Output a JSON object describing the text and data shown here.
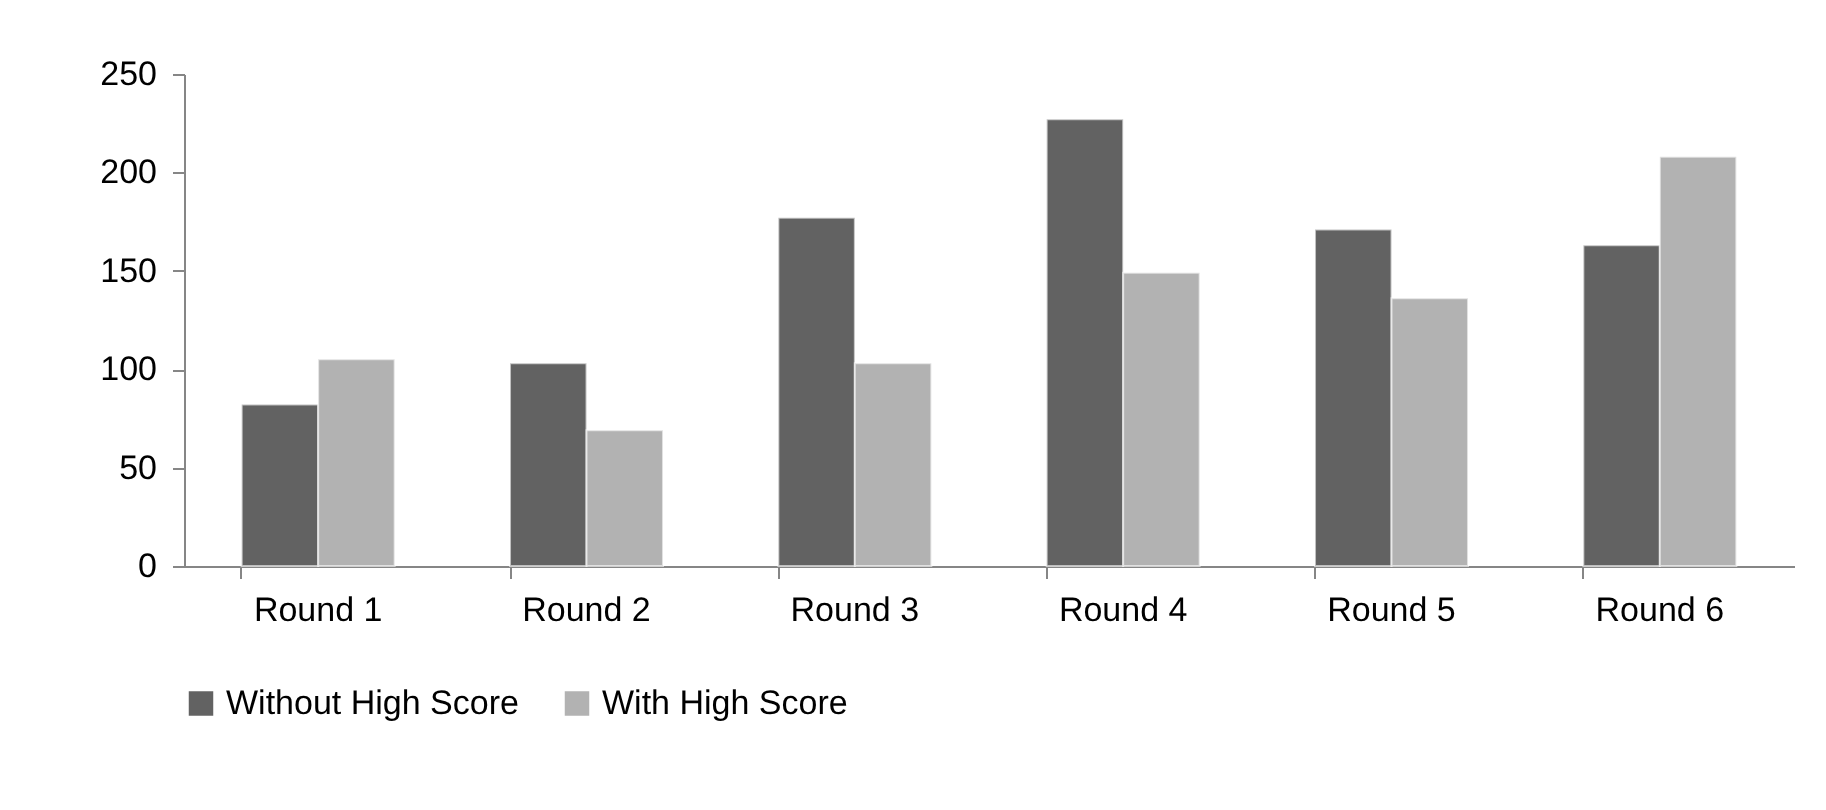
{
  "chart_data": {
    "type": "bar",
    "categories": [
      "Round 1",
      "Round 2",
      "Round 3",
      "Round 4",
      "Round 5",
      "Round 6"
    ],
    "series": [
      {
        "name": "Without High Score",
        "color": "#626262",
        "values": [
          82,
          103,
          177,
          227,
          171,
          163
        ]
      },
      {
        "name": "With High Score",
        "color": "#b2b2b2",
        "values": [
          105,
          69,
          103,
          149,
          136,
          208
        ]
      }
    ],
    "ylim": [
      0,
      250
    ],
    "yticks": [
      0,
      50,
      100,
      150,
      200,
      250
    ],
    "grid": false,
    "legend": "bottom"
  }
}
